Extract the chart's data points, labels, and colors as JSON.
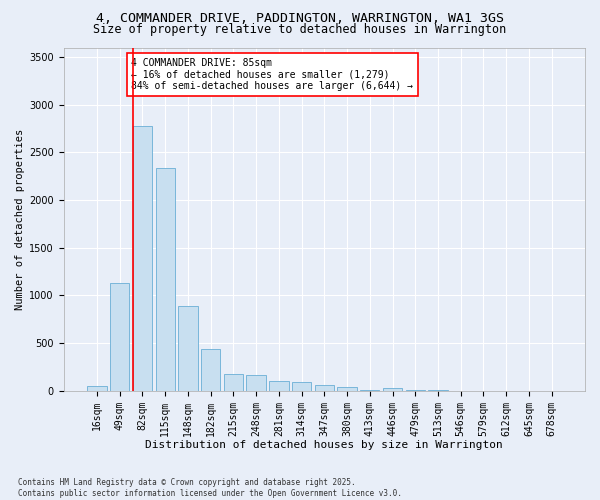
{
  "title": "4, COMMANDER DRIVE, PADDINGTON, WARRINGTON, WA1 3GS",
  "subtitle": "Size of property relative to detached houses in Warrington",
  "xlabel": "Distribution of detached houses by size in Warrington",
  "ylabel": "Number of detached properties",
  "categories": [
    "16sqm",
    "49sqm",
    "82sqm",
    "115sqm",
    "148sqm",
    "182sqm",
    "215sqm",
    "248sqm",
    "281sqm",
    "314sqm",
    "347sqm",
    "380sqm",
    "413sqm",
    "446sqm",
    "479sqm",
    "513sqm",
    "546sqm",
    "579sqm",
    "612sqm",
    "645sqm",
    "678sqm"
  ],
  "values": [
    55,
    1130,
    2780,
    2340,
    890,
    440,
    175,
    165,
    100,
    90,
    60,
    45,
    5,
    30,
    10,
    5,
    3,
    2,
    1,
    1,
    1
  ],
  "bar_color": "#c8dff0",
  "bar_edge_color": "#6aaed6",
  "vline_color": "red",
  "annotation_text": "4 COMMANDER DRIVE: 85sqm\n← 16% of detached houses are smaller (1,279)\n84% of semi-detached houses are larger (6,644) →",
  "annotation_box_color": "white",
  "annotation_box_edge": "red",
  "ylim": [
    0,
    3600
  ],
  "yticks": [
    0,
    500,
    1000,
    1500,
    2000,
    2500,
    3000,
    3500
  ],
  "background_color": "#e8eef8",
  "grid_color": "white",
  "footer": "Contains HM Land Registry data © Crown copyright and database right 2025.\nContains public sector information licensed under the Open Government Licence v3.0.",
  "title_fontsize": 9.5,
  "subtitle_fontsize": 8.5,
  "xlabel_fontsize": 8,
  "ylabel_fontsize": 7.5,
  "tick_fontsize": 7,
  "annotation_fontsize": 7,
  "footer_fontsize": 5.5
}
